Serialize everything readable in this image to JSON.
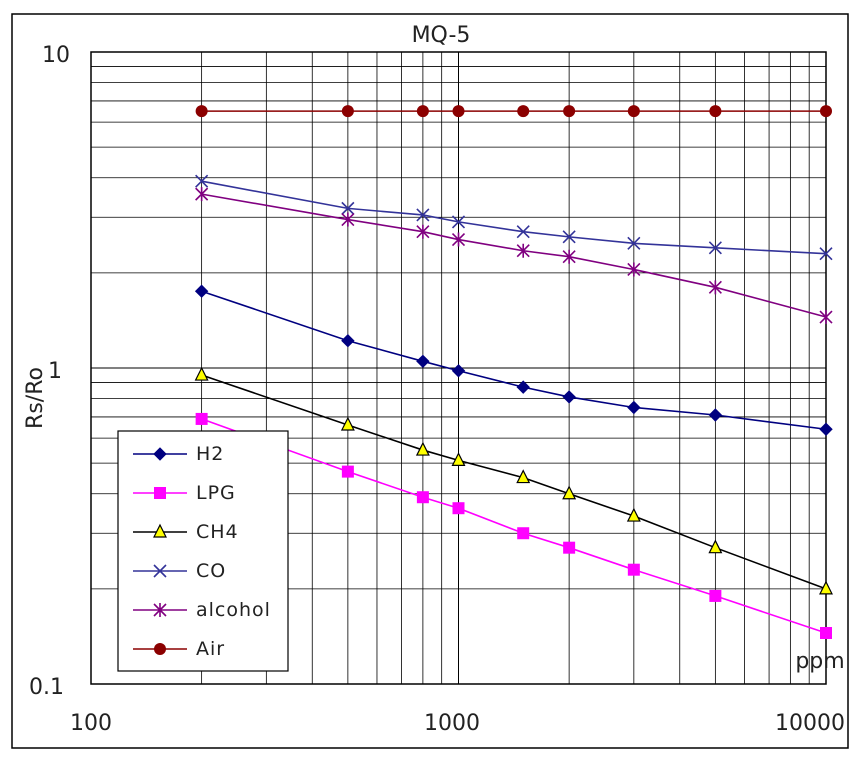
{
  "chart_data": {
    "type": "line",
    "title": "MQ-5",
    "xlabel": "ppm",
    "ylabel": "Rs/Ro",
    "x_scale": "log",
    "y_scale": "log",
    "xlim": [
      100,
      10000
    ],
    "ylim": [
      0.1,
      10
    ],
    "x_tick_labels": [
      "100",
      "1000",
      "10000"
    ],
    "y_tick_labels": [
      "0.1",
      "1",
      "10"
    ],
    "x_tick_values": [
      100,
      1000,
      10000
    ],
    "y_tick_values": [
      0.1,
      1,
      10
    ],
    "grid": true,
    "legend_position": "bottom-left",
    "x": [
      200,
      500,
      800,
      1000,
      1500,
      2000,
      3000,
      5000,
      10000
    ],
    "series": [
      {
        "name": "H2",
        "color": "#000080",
        "marker": "diamond",
        "values": [
          1.75,
          1.22,
          1.05,
          0.98,
          0.87,
          0.81,
          0.75,
          0.71,
          0.64
        ]
      },
      {
        "name": "LPG",
        "color": "#ff00ff",
        "marker": "square",
        "values": [
          0.69,
          0.47,
          0.39,
          0.36,
          0.3,
          0.27,
          0.23,
          0.19,
          0.145
        ]
      },
      {
        "name": "CH4",
        "color": "#000000",
        "marker": "triangle",
        "marker_fill": "#ffff00",
        "values": [
          0.95,
          0.66,
          0.55,
          0.51,
          0.45,
          0.4,
          0.34,
          0.27,
          0.2
        ]
      },
      {
        "name": "CO",
        "color": "#333399",
        "marker": "x",
        "values": [
          3.9,
          3.2,
          3.05,
          2.9,
          2.7,
          2.6,
          2.48,
          2.4,
          2.3
        ]
      },
      {
        "name": "alcohol",
        "color": "#800080",
        "marker": "asterisk",
        "values": [
          3.55,
          2.95,
          2.7,
          2.55,
          2.35,
          2.25,
          2.05,
          1.8,
          1.45
        ]
      },
      {
        "name": "Air",
        "color": "#8b0000",
        "marker": "circle",
        "values": [
          6.5,
          6.5,
          6.5,
          6.5,
          6.5,
          6.5,
          6.5,
          6.5,
          6.5
        ]
      }
    ]
  }
}
